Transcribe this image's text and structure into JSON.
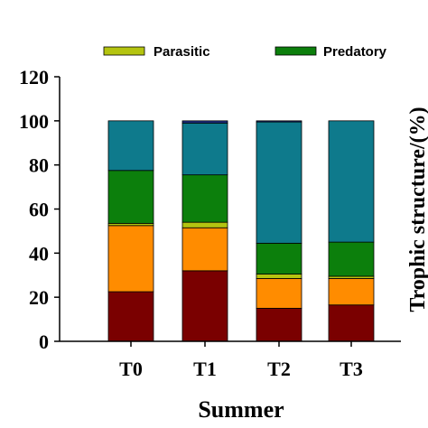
{
  "chart_data": {
    "type": "bar",
    "stacked": true,
    "categories": [
      "T0",
      "T1",
      "T2",
      "T3"
    ],
    "series": [
      {
        "color": "#7a0000",
        "values": [
          22.5,
          32,
          15,
          16.5
        ]
      },
      {
        "color": "#ff8c00",
        "values": [
          30,
          19.5,
          13.5,
          12
        ]
      },
      {
        "color": "#b4c410",
        "values": [
          1,
          2.5,
          2,
          1
        ]
      },
      {
        "name": "Predatory",
        "color": "#0c7f0c",
        "values": [
          24,
          21.5,
          14,
          15.5
        ]
      },
      {
        "color": "#0e7a8c",
        "values": [
          22.5,
          23.5,
          55,
          55
        ]
      },
      {
        "color": "#1a2a80",
        "values": [
          0,
          1,
          0.5,
          0
        ]
      }
    ],
    "legend": [
      {
        "label": "Parasitic",
        "color": "#b4c410"
      },
      {
        "label": "Predatory",
        "color": "#0c7f0c"
      }
    ],
    "xlabel": "Summer",
    "ylabel": "Trophic structure/(%)",
    "ylim": [
      0,
      120
    ],
    "yticks": [
      0,
      20,
      40,
      60,
      80,
      100,
      120
    ],
    "grid": false,
    "legend_position": "top"
  }
}
